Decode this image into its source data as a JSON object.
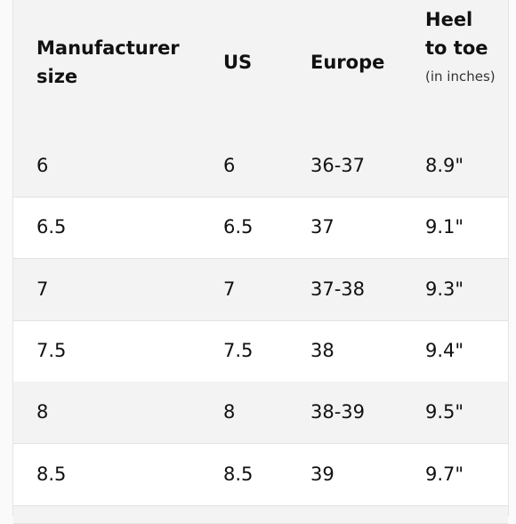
{
  "table": {
    "header": [
      "Manufacturer size",
      "US",
      "Europe",
      {
        "title": "Heel to toe",
        "note": "(in inches)"
      }
    ],
    "rows": [
      [
        "6",
        "6",
        "36-37",
        "8.9\""
      ],
      [
        "6.5",
        "6.5",
        "37",
        "9.1\""
      ],
      [
        "7",
        "7",
        "37-38",
        "9.3\""
      ],
      [
        "7.5",
        "7.5",
        "38",
        "9.4\""
      ],
      [
        "8",
        "8",
        "38-39",
        "9.5\""
      ],
      [
        "8.5",
        "8.5",
        "39",
        "9.7\""
      ]
    ]
  }
}
